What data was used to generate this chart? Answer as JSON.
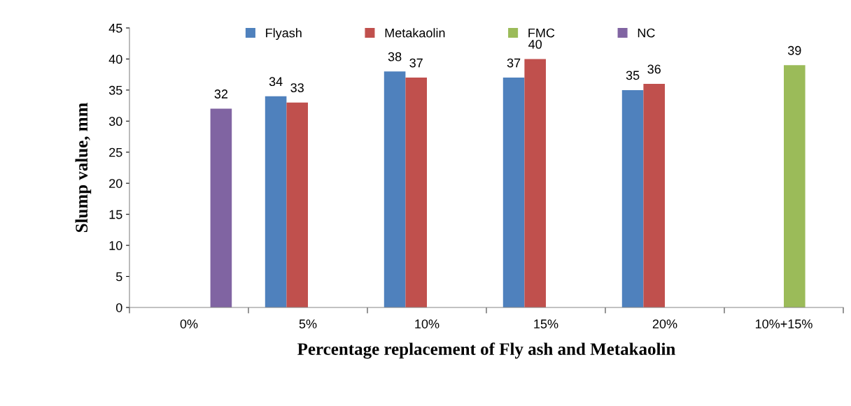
{
  "chart_data": {
    "type": "bar",
    "xlabel": "Percentage replacement of Fly ash and Metakaolin",
    "ylabel": "Slump value, mm",
    "categories": [
      "0%",
      "5%",
      "10%",
      "15%",
      "20%",
      "10%+15%"
    ],
    "series": [
      {
        "name": "Flyash",
        "color": "#4f81bd",
        "values": [
          null,
          34,
          38,
          37,
          35,
          null
        ]
      },
      {
        "name": "Metakaolin",
        "color": "#c0504d",
        "values": [
          null,
          33,
          37,
          40,
          36,
          null
        ]
      },
      {
        "name": "FMC",
        "color": "#9bbb59",
        "values": [
          null,
          null,
          null,
          null,
          null,
          39
        ]
      },
      {
        "name": "NC",
        "color": "#8064a2",
        "values": [
          32,
          null,
          null,
          null,
          null,
          null
        ]
      }
    ],
    "ylim": [
      0,
      45
    ],
    "yticks": [
      0,
      5,
      10,
      15,
      20,
      25,
      30,
      35,
      40,
      45
    ],
    "grid": false,
    "legend": "top",
    "data_labels": true
  }
}
